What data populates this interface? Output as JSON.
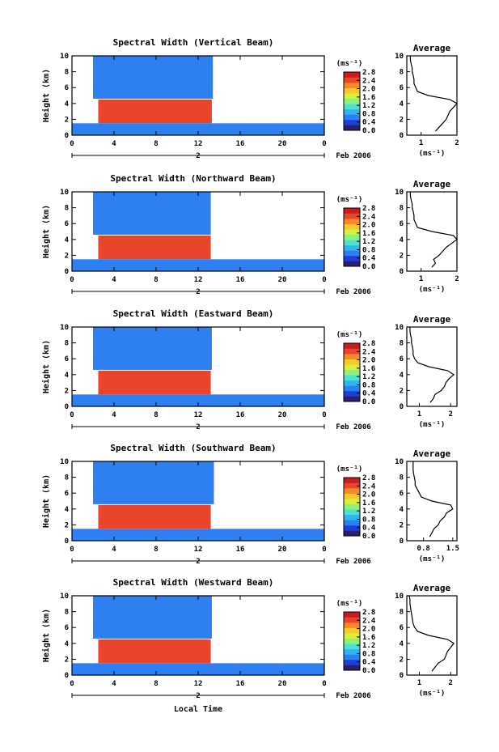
{
  "figure": {
    "xlabel": "Local Time",
    "date_label": "Feb 2006",
    "day_label": "2",
    "colorbar_unit": "(ms⁻¹)",
    "avg_title": "Average",
    "avg_unit": "(ms⁻¹)",
    "colormap": [
      "#2b1e6e",
      "#1f3fd6",
      "#2e7ff0",
      "#30b6ef",
      "#4fe0d0",
      "#8ef080",
      "#d7f03e",
      "#f7c92a",
      "#f5892a",
      "#e8452b",
      "#c81d1f"
    ]
  },
  "chart_data": [
    {
      "type": "heatmap",
      "title": "Spectral Width (Vertical Beam)",
      "ylabel": "Height (km)",
      "xlim": [
        0,
        24
      ],
      "ylim": [
        0,
        10
      ],
      "x_ticks": [
        "0",
        "4",
        "8",
        "12",
        "16",
        "20",
        "0"
      ],
      "y_ticks": [
        "0",
        "2",
        "4",
        "6",
        "8",
        "10"
      ],
      "colorbar": {
        "vmin": 0.0,
        "vmax": 2.8,
        "ticks": [
          "0.0",
          "0.4",
          "0.8",
          "1.2",
          "1.6",
          "2.0",
          "2.4",
          "2.8"
        ]
      },
      "regions": [
        {
          "x0": 2,
          "x1": 13.4,
          "y0": 4.6,
          "y1": 10,
          "value": 0.7
        },
        {
          "x0": 2.5,
          "x1": 13.3,
          "y0": 1.5,
          "y1": 4.5,
          "value": 2.5
        },
        {
          "x0": 0,
          "x1": 24,
          "y0": 0,
          "y1": 1.5,
          "value": 0.6
        }
      ],
      "average": {
        "xlim": [
          0.6,
          2.0
        ],
        "x_ticks": [
          "1",
          "2"
        ],
        "heights": [
          0.5,
          1,
          1.5,
          2,
          2.5,
          3,
          3.5,
          4,
          4.5,
          5,
          5.5,
          6,
          6.5,
          7,
          7.5,
          8,
          8.5,
          9,
          9.5,
          10
        ],
        "values": [
          1.4,
          1.5,
          1.6,
          1.7,
          1.75,
          1.8,
          1.9,
          2.0,
          1.8,
          1.2,
          0.9,
          0.85,
          0.8,
          0.8,
          0.78,
          0.75,
          0.75,
          0.72,
          0.7,
          0.7
        ]
      }
    },
    {
      "type": "heatmap",
      "title": "Spectral Width (Northward Beam)",
      "ylabel": "Height (km)",
      "xlim": [
        0,
        24
      ],
      "ylim": [
        0,
        10
      ],
      "x_ticks": [
        "0",
        "4",
        "8",
        "12",
        "16",
        "20",
        "0"
      ],
      "y_ticks": [
        "0",
        "2",
        "4",
        "6",
        "8",
        "10"
      ],
      "colorbar": {
        "vmin": 0.0,
        "vmax": 2.8,
        "ticks": [
          "0.0",
          "0.4",
          "0.8",
          "1.2",
          "1.6",
          "2.0",
          "2.4",
          "2.8"
        ]
      },
      "regions": [
        {
          "x0": 2,
          "x1": 13.2,
          "y0": 4.6,
          "y1": 10,
          "value": 0.7
        },
        {
          "x0": 2.5,
          "x1": 13.2,
          "y0": 1.5,
          "y1": 4.5,
          "value": 2.4
        },
        {
          "x0": 0,
          "x1": 24,
          "y0": 0,
          "y1": 1.5,
          "value": 0.6
        }
      ],
      "average": {
        "xlim": [
          0.6,
          2.0
        ],
        "x_ticks": [
          "1",
          "2"
        ],
        "heights": [
          0.5,
          1,
          1.5,
          2,
          2.5,
          3,
          3.5,
          4,
          4.5,
          5,
          5.5,
          6,
          6.5,
          7,
          7.5,
          8,
          8.5,
          9,
          9.5,
          10
        ],
        "values": [
          1.3,
          1.4,
          1.35,
          1.5,
          1.6,
          1.7,
          1.85,
          2.0,
          1.9,
          1.3,
          0.9,
          0.85,
          0.8,
          0.8,
          0.78,
          0.75,
          0.75,
          0.72,
          0.7,
          0.7
        ]
      }
    },
    {
      "type": "heatmap",
      "title": "Spectral Width (Eastward Beam)",
      "ylabel": "Height (km)",
      "xlim": [
        0,
        24
      ],
      "ylim": [
        0,
        10
      ],
      "x_ticks": [
        "0",
        "4",
        "8",
        "12",
        "16",
        "20",
        "0"
      ],
      "y_ticks": [
        "0",
        "2",
        "4",
        "6",
        "8",
        "10"
      ],
      "colorbar": {
        "vmin": 0.0,
        "vmax": 2.8,
        "ticks": [
          "0.0",
          "0.4",
          "0.8",
          "1.2",
          "1.6",
          "2.0",
          "2.4",
          "2.8"
        ]
      },
      "regions": [
        {
          "x0": 2,
          "x1": 13.3,
          "y0": 4.6,
          "y1": 10,
          "value": 0.7
        },
        {
          "x0": 2.5,
          "x1": 13.2,
          "y0": 1.5,
          "y1": 4.5,
          "value": 2.5
        },
        {
          "x0": 0,
          "x1": 24,
          "y0": 0,
          "y1": 1.5,
          "value": 0.6
        }
      ],
      "average": {
        "xlim": [
          0.6,
          2.2
        ],
        "x_ticks": [
          "1",
          "2"
        ],
        "heights": [
          0.5,
          1,
          1.5,
          2,
          2.5,
          3,
          3.5,
          4,
          4.5,
          5,
          5.5,
          6,
          6.5,
          7,
          7.5,
          8,
          8.5,
          9,
          9.5,
          10
        ],
        "values": [
          1.35,
          1.45,
          1.5,
          1.7,
          1.8,
          1.85,
          1.95,
          2.1,
          1.9,
          1.3,
          0.95,
          0.85,
          0.8,
          0.8,
          0.78,
          0.75,
          0.75,
          0.72,
          0.7,
          0.7
        ]
      }
    },
    {
      "type": "heatmap",
      "title": "Spectral Width (Southward Beam)",
      "ylabel": "Height (km)",
      "xlim": [
        0,
        24
      ],
      "ylim": [
        0,
        10
      ],
      "x_ticks": [
        "0",
        "4",
        "8",
        "12",
        "16",
        "20",
        "0"
      ],
      "y_ticks": [
        "0",
        "2",
        "4",
        "6",
        "8",
        "10"
      ],
      "colorbar": {
        "vmin": 0.0,
        "vmax": 2.8,
        "ticks": [
          "0.0",
          "0.4",
          "0.8",
          "1.2",
          "1.6",
          "2.0",
          "2.4",
          "2.8"
        ]
      },
      "regions": [
        {
          "x0": 2,
          "x1": 13.5,
          "y0": 4.6,
          "y1": 10,
          "value": 0.7
        },
        {
          "x0": 2.5,
          "x1": 13.2,
          "y0": 1.5,
          "y1": 4.5,
          "value": 2.4
        },
        {
          "x0": 0,
          "x1": 24,
          "y0": 0,
          "y1": 1.5,
          "value": 0.6
        }
      ],
      "average": {
        "xlim": [
          0.4,
          1.6
        ],
        "x_ticks": [
          "0.8",
          "1.5"
        ],
        "heights": [
          0.5,
          1,
          1.5,
          2,
          2.5,
          3,
          3.5,
          4,
          4.5,
          5,
          5.5,
          6,
          6.5,
          7,
          7.5,
          8,
          8.5,
          9,
          9.5,
          10
        ],
        "values": [
          0.95,
          1.0,
          1.05,
          1.15,
          1.2,
          1.3,
          1.35,
          1.5,
          1.45,
          1.0,
          0.75,
          0.7,
          0.65,
          0.6,
          0.6,
          0.58,
          0.56,
          0.55,
          0.55,
          0.55
        ]
      }
    },
    {
      "type": "heatmap",
      "title": "Spectral Width (Westward Beam)",
      "ylabel": "Height (km)",
      "xlim": [
        0,
        24
      ],
      "ylim": [
        0,
        10
      ],
      "x_ticks": [
        "0",
        "4",
        "8",
        "12",
        "16",
        "20",
        "0"
      ],
      "y_ticks": [
        "0",
        "2",
        "4",
        "6",
        "8",
        "10"
      ],
      "colorbar": {
        "vmin": 0.0,
        "vmax": 2.8,
        "ticks": [
          "0.0",
          "0.4",
          "0.8",
          "1.2",
          "1.6",
          "2.0",
          "2.4",
          "2.8"
        ]
      },
      "regions": [
        {
          "x0": 2,
          "x1": 13.3,
          "y0": 4.6,
          "y1": 10,
          "value": 0.7
        },
        {
          "x0": 2.5,
          "x1": 13.2,
          "y0": 1.5,
          "y1": 4.5,
          "value": 2.5
        },
        {
          "x0": 0,
          "x1": 24,
          "y0": 0,
          "y1": 1.5,
          "value": 0.6
        }
      ],
      "average": {
        "xlim": [
          0.6,
          2.2
        ],
        "x_ticks": [
          "1",
          "2"
        ],
        "heights": [
          0.5,
          1,
          1.5,
          2,
          2.5,
          3,
          3.5,
          4,
          4.5,
          5,
          5.5,
          6,
          6.5,
          7,
          7.5,
          8,
          8.5,
          9,
          9.5,
          10
        ],
        "values": [
          1.4,
          1.5,
          1.6,
          1.8,
          1.85,
          1.9,
          2.0,
          2.1,
          1.9,
          1.3,
          0.95,
          0.85,
          0.8,
          0.78,
          0.76,
          0.74,
          0.72,
          0.7,
          0.7,
          0.68
        ]
      }
    }
  ]
}
